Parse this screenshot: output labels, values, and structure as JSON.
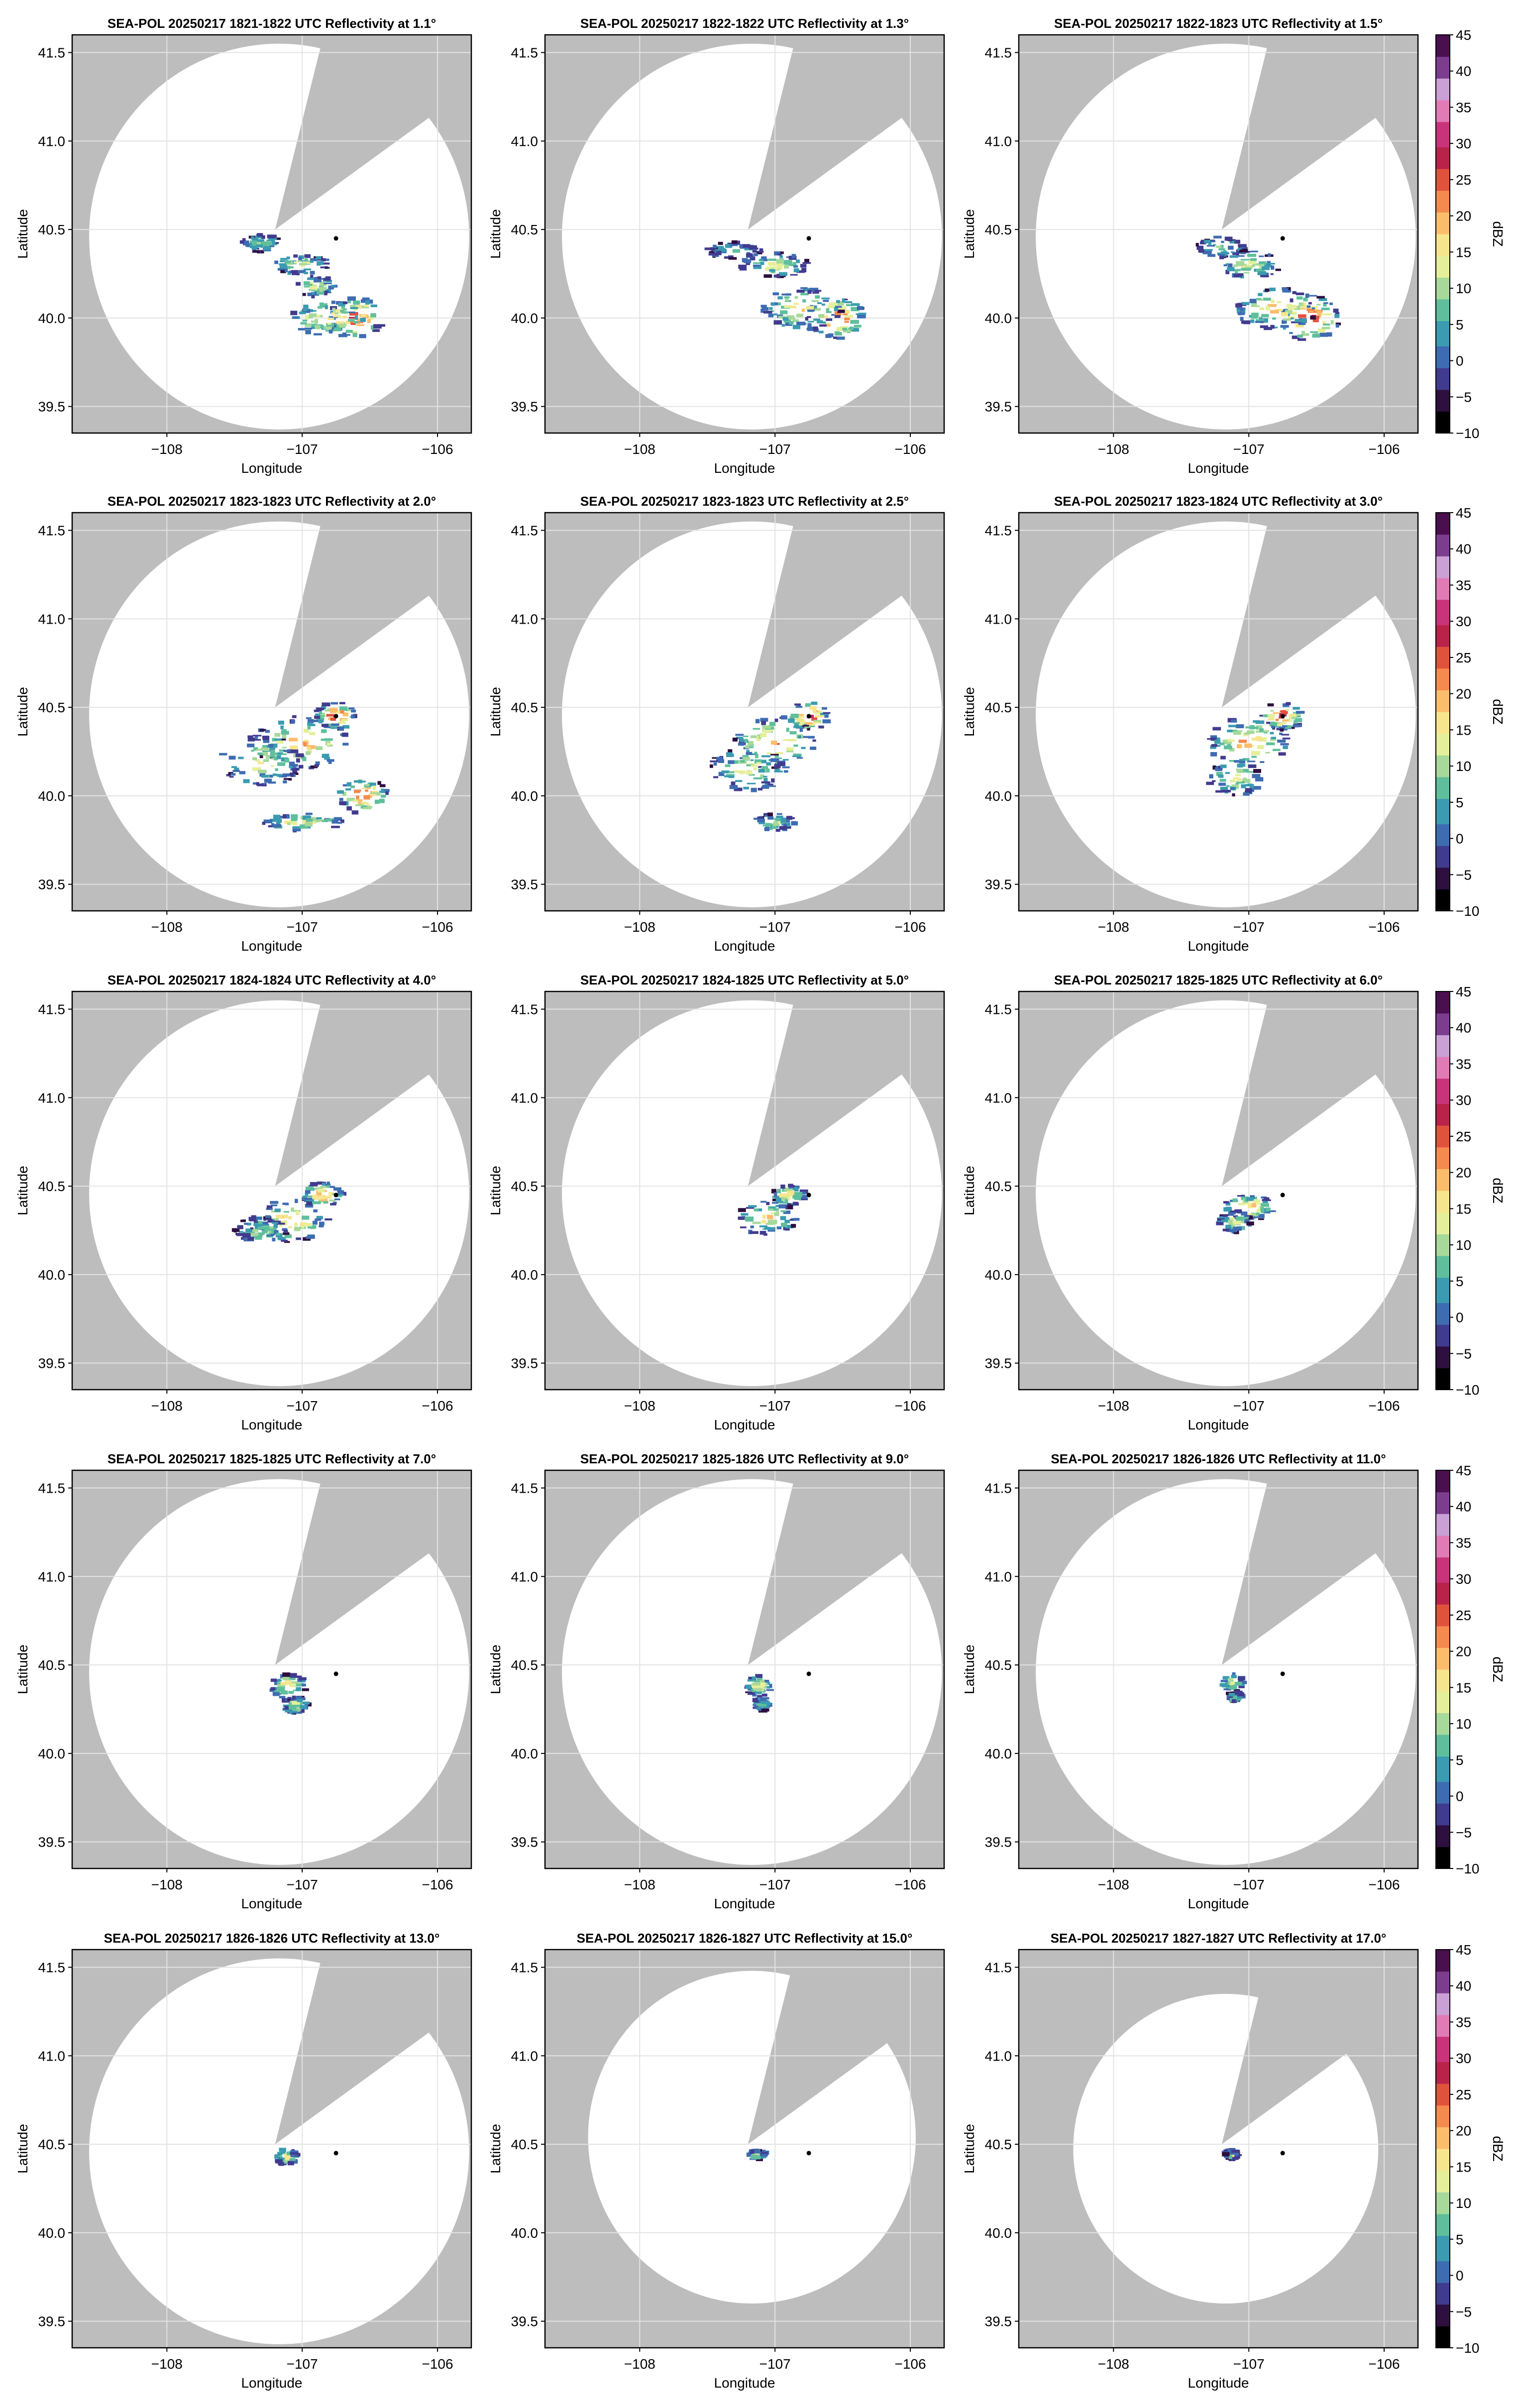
{
  "figure": {
    "colorbar_label": "dBZ",
    "colorbar_ticks": [
      -10,
      -5,
      0,
      5,
      10,
      15,
      20,
      25,
      30,
      35,
      40,
      45
    ],
    "colorbar_range": [
      -10,
      45
    ],
    "colormap": [
      "#000000",
      "#2e0f3f",
      "#413b8f",
      "#3e6cb2",
      "#3a9bb1",
      "#5fbf9c",
      "#a6d99a",
      "#e5ef9a",
      "#f7e58d",
      "#fbbd6c",
      "#f58a4f",
      "#e1523d",
      "#b8234a",
      "#c8347a",
      "#e07bb6",
      "#caa0d6",
      "#7c3d8f",
      "#4a0f4f"
    ],
    "mask_color": "#bdbdbd",
    "grid_color": "#e3e3e3"
  },
  "chart_data": [
    {
      "type": "heatmap",
      "title": "SEA-POL 20250217 1821-1822 UTC Reflectivity at 1.1°",
      "elevation_deg": 1.1,
      "max_range_lat": [
        39.37,
        41.55
      ],
      "xlabel": "Longitude",
      "ylabel": "Latitude",
      "xlim": [
        -108.7,
        -105.75
      ],
      "ylim": [
        39.35,
        41.6
      ],
      "xticks": [
        -108,
        -107,
        -106
      ],
      "yticks": [
        39.5,
        40.0,
        40.5,
        41.0,
        41.5
      ],
      "radar_site": [
        -107.2,
        40.5
      ],
      "marker": [
        -106.75,
        40.45
      ],
      "features": [
        {
          "lon": -106.6,
          "lat": 40.0,
          "dlon": 0.2,
          "dlat": 0.12,
          "dbz": 30
        },
        {
          "lon": -106.8,
          "lat": 40.0,
          "dlon": 0.3,
          "dlat": 0.1,
          "dbz": 20
        },
        {
          "lon": -107.0,
          "lat": 40.3,
          "dlon": 0.2,
          "dlat": 0.06,
          "dbz": 15
        },
        {
          "lon": -107.3,
          "lat": 40.42,
          "dlon": 0.15,
          "dlat": 0.05,
          "dbz": 10
        },
        {
          "lon": -106.9,
          "lat": 40.18,
          "dlon": 0.15,
          "dlat": 0.06,
          "dbz": 15
        }
      ]
    },
    {
      "type": "heatmap",
      "title": "SEA-POL 20250217 1822-1822 UTC Reflectivity at 1.3°",
      "elevation_deg": 1.3,
      "max_range_lat": [
        39.37,
        41.55
      ],
      "xlabel": "Longitude",
      "ylabel": "Latitude",
      "xlim": [
        -108.7,
        -105.75
      ],
      "ylim": [
        39.35,
        41.6
      ],
      "xticks": [
        -108,
        -107,
        -106
      ],
      "yticks": [
        39.5,
        40.0,
        40.5,
        41.0,
        41.5
      ],
      "radar_site": [
        -107.2,
        40.5
      ],
      "marker": [
        -106.75,
        40.45
      ],
      "features": [
        {
          "lon": -106.55,
          "lat": 40.0,
          "dlon": 0.22,
          "dlat": 0.12,
          "dbz": 30
        },
        {
          "lon": -106.8,
          "lat": 40.05,
          "dlon": 0.3,
          "dlat": 0.12,
          "dbz": 20
        },
        {
          "lon": -107.0,
          "lat": 40.3,
          "dlon": 0.25,
          "dlat": 0.07,
          "dbz": 15
        },
        {
          "lon": -107.3,
          "lat": 40.38,
          "dlon": 0.2,
          "dlat": 0.05,
          "dbz": 10
        }
      ]
    },
    {
      "type": "heatmap",
      "title": "SEA-POL 20250217 1822-1823 UTC Reflectivity at 1.5°",
      "elevation_deg": 1.5,
      "max_range_lat": [
        39.37,
        41.55
      ],
      "xlabel": "Longitude",
      "ylabel": "Latitude",
      "xlim": [
        -108.7,
        -105.75
      ],
      "ylim": [
        39.35,
        41.6
      ],
      "xticks": [
        -108,
        -107,
        -106
      ],
      "yticks": [
        39.5,
        40.0,
        40.5,
        41.0,
        41.5
      ],
      "radar_site": [
        -107.2,
        40.5
      ],
      "marker": [
        -106.75,
        40.45
      ],
      "features": [
        {
          "lon": -106.55,
          "lat": 40.0,
          "dlon": 0.22,
          "dlat": 0.13,
          "dbz": 32
        },
        {
          "lon": -106.8,
          "lat": 40.05,
          "dlon": 0.3,
          "dlat": 0.12,
          "dbz": 20
        },
        {
          "lon": -107.0,
          "lat": 40.3,
          "dlon": 0.25,
          "dlat": 0.08,
          "dbz": 15
        },
        {
          "lon": -107.2,
          "lat": 40.4,
          "dlon": 0.2,
          "dlat": 0.06,
          "dbz": 10
        }
      ]
    },
    {
      "type": "heatmap",
      "title": "SEA-POL 20250217 1823-1823 UTC Reflectivity at 2.0°",
      "elevation_deg": 2.0,
      "max_range_lat": [
        39.37,
        41.55
      ],
      "xlabel": "Longitude",
      "ylabel": "Latitude",
      "xlim": [
        -108.7,
        -105.75
      ],
      "ylim": [
        39.35,
        41.6
      ],
      "xticks": [
        -108,
        -107,
        -106
      ],
      "yticks": [
        39.5,
        40.0,
        40.5,
        41.0,
        41.5
      ],
      "radar_site": [
        -107.2,
        40.5
      ],
      "marker": [
        -106.75,
        40.45
      ],
      "features": [
        {
          "lon": -106.75,
          "lat": 40.45,
          "dlon": 0.15,
          "dlat": 0.08,
          "dbz": 32
        },
        {
          "lon": -107.0,
          "lat": 40.3,
          "dlon": 0.35,
          "dlat": 0.15,
          "dbz": 22
        },
        {
          "lon": -106.55,
          "lat": 40.0,
          "dlon": 0.18,
          "dlat": 0.1,
          "dbz": 30
        },
        {
          "lon": -107.3,
          "lat": 40.2,
          "dlon": 0.3,
          "dlat": 0.15,
          "dbz": 15
        },
        {
          "lon": -107.0,
          "lat": 39.85,
          "dlon": 0.3,
          "dlat": 0.05,
          "dbz": 18
        }
      ]
    },
    {
      "type": "heatmap",
      "title": "SEA-POL 20250217 1823-1823 UTC Reflectivity at 2.5°",
      "elevation_deg": 2.5,
      "max_range_lat": [
        39.37,
        41.55
      ],
      "xlabel": "Longitude",
      "ylabel": "Latitude",
      "xlim": [
        -108.7,
        -105.75
      ],
      "ylim": [
        39.35,
        41.6
      ],
      "xticks": [
        -108,
        -107,
        -106
      ],
      "yticks": [
        39.5,
        40.0,
        40.5,
        41.0,
        41.5
      ],
      "radar_site": [
        -107.2,
        40.5
      ],
      "marker": [
        -106.75,
        40.45
      ],
      "features": [
        {
          "lon": -106.75,
          "lat": 40.45,
          "dlon": 0.15,
          "dlat": 0.08,
          "dbz": 32
        },
        {
          "lon": -107.0,
          "lat": 40.3,
          "dlon": 0.3,
          "dlat": 0.15,
          "dbz": 22
        },
        {
          "lon": -107.2,
          "lat": 40.15,
          "dlon": 0.3,
          "dlat": 0.12,
          "dbz": 15
        },
        {
          "lon": -107.0,
          "lat": 39.85,
          "dlon": 0.15,
          "dlat": 0.05,
          "dbz": 15
        }
      ]
    },
    {
      "type": "heatmap",
      "title": "SEA-POL 20250217 1823-1824 UTC Reflectivity at 3.0°",
      "elevation_deg": 3.0,
      "max_range_lat": [
        39.37,
        41.55
      ],
      "xlabel": "Longitude",
      "ylabel": "Latitude",
      "xlim": [
        -108.7,
        -105.75
      ],
      "ylim": [
        39.35,
        41.6
      ],
      "xticks": [
        -108,
        -107,
        -106
      ],
      "yticks": [
        39.5,
        40.0,
        40.5,
        41.0,
        41.5
      ],
      "radar_site": [
        -107.2,
        40.5
      ],
      "marker": [
        -106.75,
        40.45
      ],
      "features": [
        {
          "lon": -106.75,
          "lat": 40.45,
          "dlon": 0.15,
          "dlat": 0.08,
          "dbz": 32
        },
        {
          "lon": -107.0,
          "lat": 40.3,
          "dlon": 0.3,
          "dlat": 0.14,
          "dbz": 22
        },
        {
          "lon": -107.1,
          "lat": 40.1,
          "dlon": 0.2,
          "dlat": 0.1,
          "dbz": 15
        }
      ]
    },
    {
      "type": "heatmap",
      "title": "SEA-POL 20250217 1824-1824 UTC Reflectivity at 4.0°",
      "elevation_deg": 4.0,
      "max_range_lat": [
        39.37,
        41.55
      ],
      "xlabel": "Longitude",
      "ylabel": "Latitude",
      "xlim": [
        -108.7,
        -105.75
      ],
      "ylim": [
        39.35,
        41.6
      ],
      "xticks": [
        -108,
        -107,
        -106
      ],
      "yticks": [
        39.5,
        40.0,
        40.5,
        41.0,
        41.5
      ],
      "radar_site": [
        -107.2,
        40.5
      ],
      "marker": [
        -106.75,
        40.45
      ],
      "features": [
        {
          "lon": -106.85,
          "lat": 40.45,
          "dlon": 0.15,
          "dlat": 0.07,
          "dbz": 25
        },
        {
          "lon": -107.1,
          "lat": 40.3,
          "dlon": 0.3,
          "dlat": 0.12,
          "dbz": 20
        },
        {
          "lon": -107.3,
          "lat": 40.25,
          "dlon": 0.2,
          "dlat": 0.08,
          "dbz": 12
        }
      ]
    },
    {
      "type": "heatmap",
      "title": "SEA-POL 20250217 1824-1825 UTC Reflectivity at 5.0°",
      "elevation_deg": 5.0,
      "max_range_lat": [
        39.37,
        41.55
      ],
      "xlabel": "Longitude",
      "ylabel": "Latitude",
      "xlim": [
        -108.7,
        -105.75
      ],
      "ylim": [
        39.35,
        41.6
      ],
      "xticks": [
        -108,
        -107,
        -106
      ],
      "yticks": [
        39.5,
        40.0,
        40.5,
        41.0,
        41.5
      ],
      "radar_site": [
        -107.2,
        40.5
      ],
      "marker": [
        -106.75,
        40.45
      ],
      "features": [
        {
          "lon": -106.9,
          "lat": 40.45,
          "dlon": 0.12,
          "dlat": 0.06,
          "dbz": 22
        },
        {
          "lon": -107.05,
          "lat": 40.32,
          "dlon": 0.22,
          "dlat": 0.1,
          "dbz": 18
        }
      ]
    },
    {
      "type": "heatmap",
      "title": "SEA-POL 20250217 1825-1825 UTC Reflectivity at 6.0°",
      "elevation_deg": 6.0,
      "max_range_lat": [
        39.37,
        41.55
      ],
      "xlabel": "Longitude",
      "ylabel": "Latitude",
      "xlim": [
        -108.7,
        -105.75
      ],
      "ylim": [
        39.35,
        41.6
      ],
      "xticks": [
        -108,
        -107,
        -106
      ],
      "yticks": [
        39.5,
        40.0,
        40.5,
        41.0,
        41.5
      ],
      "radar_site": [
        -107.2,
        40.5
      ],
      "marker": [
        -106.75,
        40.45
      ],
      "features": [
        {
          "lon": -107.0,
          "lat": 40.38,
          "dlon": 0.18,
          "dlat": 0.08,
          "dbz": 22
        },
        {
          "lon": -107.1,
          "lat": 40.3,
          "dlon": 0.12,
          "dlat": 0.06,
          "dbz": 15
        }
      ]
    },
    {
      "type": "heatmap",
      "title": "SEA-POL 20250217 1825-1825 UTC Reflectivity at 7.0°",
      "elevation_deg": 7.0,
      "max_range_lat": [
        39.37,
        41.55
      ],
      "xlabel": "Longitude",
      "ylabel": "Latitude",
      "xlim": [
        -108.7,
        -105.75
      ],
      "ylim": [
        39.35,
        41.6
      ],
      "xticks": [
        -108,
        -107,
        -106
      ],
      "yticks": [
        39.5,
        40.0,
        40.5,
        41.0,
        41.5
      ],
      "radar_site": [
        -107.2,
        40.5
      ],
      "marker": [
        -106.75,
        40.45
      ],
      "features": [
        {
          "lon": -107.1,
          "lat": 40.38,
          "dlon": 0.13,
          "dlat": 0.07,
          "dbz": 22
        },
        {
          "lon": -107.05,
          "lat": 40.27,
          "dlon": 0.1,
          "dlat": 0.05,
          "dbz": 15
        }
      ]
    },
    {
      "type": "heatmap",
      "title": "SEA-POL 20250217 1825-1826 UTC Reflectivity at 9.0°",
      "elevation_deg": 9.0,
      "max_range_lat": [
        39.37,
        41.55
      ],
      "xlabel": "Longitude",
      "ylabel": "Latitude",
      "xlim": [
        -108.7,
        -105.75
      ],
      "ylim": [
        39.35,
        41.6
      ],
      "xticks": [
        -108,
        -107,
        -106
      ],
      "yticks": [
        39.5,
        40.0,
        40.5,
        41.0,
        41.5
      ],
      "radar_site": [
        -107.2,
        40.5
      ],
      "marker": [
        -106.75,
        40.45
      ],
      "features": [
        {
          "lon": -107.12,
          "lat": 40.38,
          "dlon": 0.09,
          "dlat": 0.06,
          "dbz": 20
        },
        {
          "lon": -107.1,
          "lat": 40.28,
          "dlon": 0.06,
          "dlat": 0.04,
          "dbz": 12
        }
      ]
    },
    {
      "type": "heatmap",
      "title": "SEA-POL 20250217 1826-1826 UTC Reflectivity at 11.0°",
      "elevation_deg": 11.0,
      "max_range_lat": [
        39.37,
        41.55
      ],
      "xlabel": "Longitude",
      "ylabel": "Latitude",
      "xlim": [
        -108.7,
        -105.75
      ],
      "ylim": [
        39.35,
        41.6
      ],
      "xticks": [
        -108,
        -107,
        -106
      ],
      "yticks": [
        39.5,
        40.0,
        40.5,
        41.0,
        41.5
      ],
      "radar_site": [
        -107.2,
        40.5
      ],
      "marker": [
        -106.75,
        40.45
      ],
      "features": [
        {
          "lon": -107.12,
          "lat": 40.4,
          "dlon": 0.08,
          "dlat": 0.05,
          "dbz": 18
        },
        {
          "lon": -107.1,
          "lat": 40.32,
          "dlon": 0.05,
          "dlat": 0.03,
          "dbz": 10
        }
      ]
    },
    {
      "type": "heatmap",
      "title": "SEA-POL 20250217 1826-1826 UTC Reflectivity at 13.0°",
      "elevation_deg": 13.0,
      "max_range_lat": [
        39.37,
        41.55
      ],
      "xlabel": "Longitude",
      "ylabel": "Latitude",
      "xlim": [
        -108.7,
        -105.75
      ],
      "ylim": [
        39.35,
        41.6
      ],
      "xticks": [
        -108,
        -107,
        -106
      ],
      "yticks": [
        39.5,
        40.0,
        40.5,
        41.0,
        41.5
      ],
      "radar_site": [
        -107.2,
        40.5
      ],
      "marker": [
        -106.75,
        40.45
      ],
      "features": [
        {
          "lon": -107.12,
          "lat": 40.43,
          "dlon": 0.08,
          "dlat": 0.05,
          "dbz": 18
        }
      ]
    },
    {
      "type": "heatmap",
      "title": "SEA-POL 20250217 1826-1827 UTC Reflectivity at 15.0°",
      "elevation_deg": 15.0,
      "max_range_lat": [
        39.6,
        41.48
      ],
      "xlabel": "Longitude",
      "ylabel": "Latitude",
      "xlim": [
        -108.7,
        -105.75
      ],
      "ylim": [
        39.35,
        41.6
      ],
      "xticks": [
        -108,
        -107,
        -106
      ],
      "yticks": [
        39.5,
        40.0,
        40.5,
        41.0,
        41.5
      ],
      "radar_site": [
        -107.2,
        40.5
      ],
      "marker": [
        -106.75,
        40.45
      ],
      "features": [
        {
          "lon": -107.13,
          "lat": 40.44,
          "dlon": 0.06,
          "dlat": 0.03,
          "dbz": 15
        }
      ]
    },
    {
      "type": "heatmap",
      "title": "SEA-POL 20250217 1827-1827 UTC Reflectivity at 17.0°",
      "elevation_deg": 17.0,
      "max_range_lat": [
        39.6,
        41.35
      ],
      "xlabel": "Longitude",
      "ylabel": "Latitude",
      "xlim": [
        -108.7,
        -105.75
      ],
      "ylim": [
        39.35,
        41.6
      ],
      "xticks": [
        -108,
        -107,
        -106
      ],
      "yticks": [
        39.5,
        40.0,
        40.5,
        41.0,
        41.5
      ],
      "radar_site": [
        -107.2,
        40.5
      ],
      "marker": [
        -106.75,
        40.45
      ],
      "features": [
        {
          "lon": -107.13,
          "lat": 40.44,
          "dlon": 0.05,
          "dlat": 0.03,
          "dbz": 12
        }
      ]
    }
  ]
}
